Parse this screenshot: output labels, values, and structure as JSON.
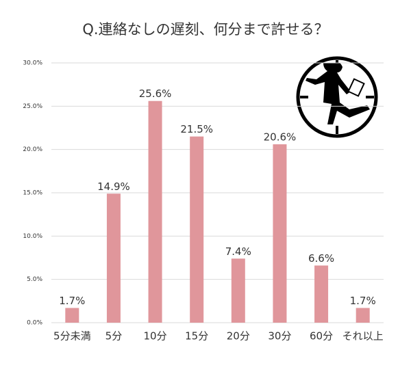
{
  "chart_data": {
    "type": "bar",
    "title": "Q.連絡なしの遅刻、何分まで許せる？",
    "categories": [
      "5分未満",
      "5分",
      "10分",
      "15分",
      "20分",
      "30分",
      "60分",
      "それ以上"
    ],
    "values": [
      1.7,
      14.9,
      25.6,
      21.5,
      7.4,
      20.6,
      6.6,
      1.7
    ],
    "value_labels": [
      "1.7%",
      "14.9%",
      "25.6%",
      "21.5%",
      "7.4%",
      "20.6%",
      "6.6%",
      "1.7%"
    ],
    "color": "#e0969b",
    "ylim": [
      0,
      30
    ],
    "yticks": [
      {
        "value": 0,
        "label": "0.0%"
      },
      {
        "value": 5,
        "label": "5.0%"
      },
      {
        "value": 10,
        "label": "10.0%"
      },
      {
        "value": 15,
        "label": "15.0%"
      },
      {
        "value": 20,
        "label": "20.0%"
      },
      {
        "value": 25,
        "label": "25.0%"
      },
      {
        "value": 30,
        "label": "30.0%"
      }
    ],
    "grid": true
  }
}
